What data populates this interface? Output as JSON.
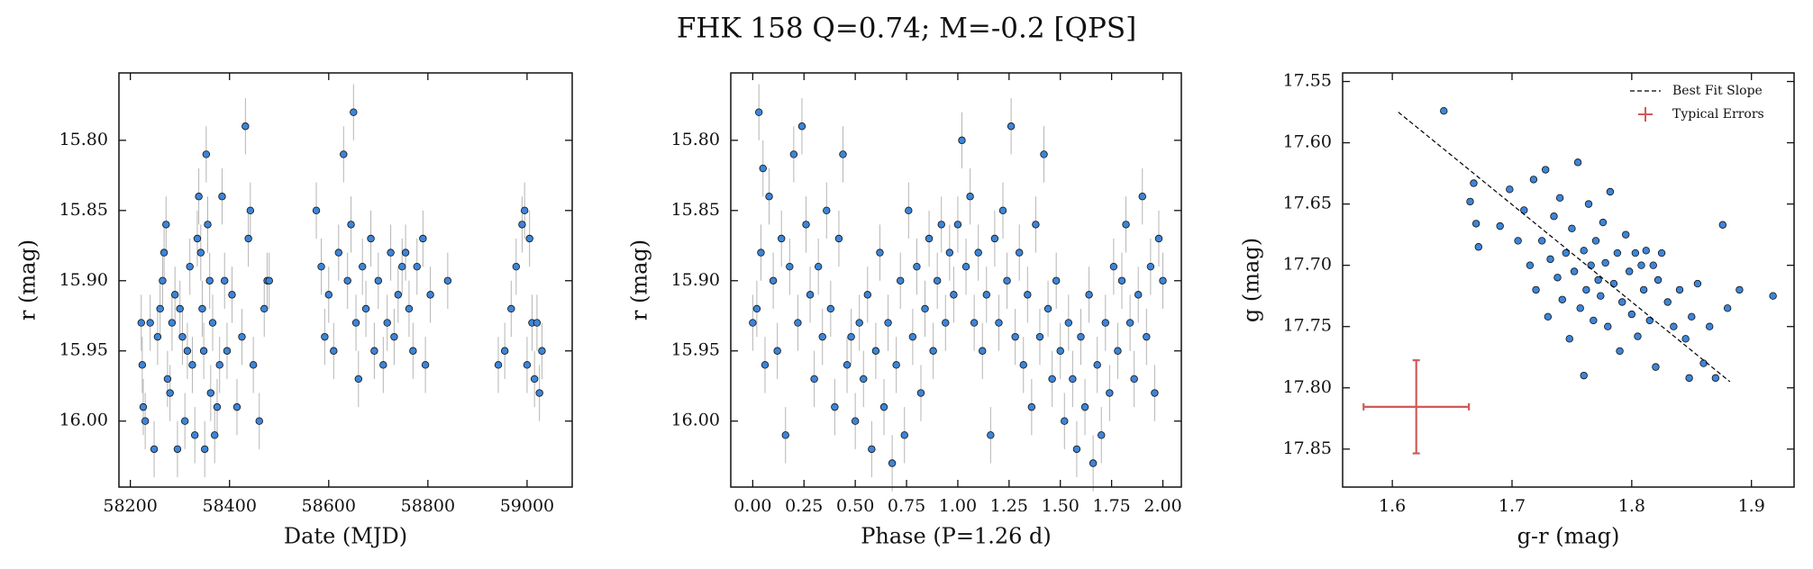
{
  "title": "FHK 158  Q=0.74; M=-0.2 [QPS]",
  "chart_data": [
    {
      "type": "scatter",
      "xlabel": "Date (MJD)",
      "ylabel": "r (mag)",
      "color": "#3d85d8",
      "error_color": "#b5b5b5",
      "yerr": 0.02,
      "xlim": [
        58177,
        59091
      ],
      "ylim": [
        16.047,
        15.752
      ],
      "xticks": [
        58200,
        58400,
        58600,
        58800,
        59000
      ],
      "yticks": [
        {
          "value": 15.8,
          "label": "15.80"
        },
        15.85,
        {
          "value": 15.9,
          "label": "15.90"
        },
        15.95,
        {
          "value": 16.0,
          "label": "16.00"
        }
      ],
      "x": [
        58222,
        58224,
        58226,
        58230,
        58240,
        58248,
        58255,
        58260,
        58265,
        58268,
        58272,
        58275,
        58280,
        58284,
        58290,
        58295,
        58300,
        58305,
        58310,
        58315,
        58320,
        58325,
        58330,
        58335,
        58338,
        58342,
        58345,
        58348,
        58350,
        58353,
        58356,
        58360,
        58362,
        58366,
        58370,
        58375,
        58380,
        58385,
        58390,
        58395,
        58405,
        58415,
        58425,
        58432,
        58438,
        58442,
        58448,
        58460,
        58470,
        58476,
        58480,
        58575,
        58585,
        58592,
        58600,
        58610,
        58620,
        58630,
        58638,
        58645,
        58650,
        58655,
        58660,
        58668,
        58675,
        58685,
        58692,
        58700,
        58710,
        58718,
        58725,
        58732,
        58740,
        58748,
        58755,
        58762,
        58770,
        58778,
        58790,
        58795,
        58805,
        58840,
        58942,
        58955,
        58968,
        58978,
        58990,
        58995,
        59000,
        59005,
        59010,
        59015,
        59020,
        59025,
        59030
      ],
      "y": [
        15.93,
        15.96,
        15.99,
        16.0,
        15.93,
        16.02,
        15.94,
        15.92,
        15.9,
        15.88,
        15.86,
        15.97,
        15.98,
        15.93,
        15.91,
        16.02,
        15.92,
        15.94,
        16.0,
        15.95,
        15.89,
        15.96,
        16.01,
        15.87,
        15.84,
        15.88,
        15.92,
        15.95,
        16.02,
        15.81,
        15.86,
        15.9,
        15.98,
        15.93,
        16.01,
        15.99,
        15.96,
        15.84,
        15.9,
        15.95,
        15.91,
        15.99,
        15.94,
        15.79,
        15.87,
        15.85,
        15.96,
        16.0,
        15.92,
        15.9,
        15.9,
        15.85,
        15.89,
        15.94,
        15.91,
        15.95,
        15.88,
        15.81,
        15.9,
        15.86,
        15.78,
        15.93,
        15.97,
        15.89,
        15.92,
        15.87,
        15.95,
        15.9,
        15.96,
        15.93,
        15.88,
        15.94,
        15.91,
        15.89,
        15.88,
        15.92,
        15.95,
        15.89,
        15.87,
        15.96,
        15.91,
        15.9,
        15.96,
        15.95,
        15.92,
        15.89,
        15.86,
        15.85,
        15.96,
        15.87,
        15.93,
        15.97,
        15.93,
        15.98,
        15.95
      ]
    },
    {
      "type": "scatter",
      "xlabel": "Phase (P=1.26 d)",
      "ylabel": "r (mag)",
      "color": "#3d85d8",
      "error_color": "#b5b5b5",
      "yerr": 0.02,
      "xlim": [
        -0.107,
        2.09
      ],
      "ylim": [
        16.047,
        15.752
      ],
      "xticks": [
        {
          "value": 0,
          "label": "0.00"
        },
        0.25,
        {
          "value": 0.5,
          "label": "0.50"
        },
        0.75,
        {
          "value": 1,
          "label": "1.00"
        },
        1.25,
        {
          "value": 1.5,
          "label": "1.50"
        },
        1.75,
        {
          "value": 2,
          "label": "2.00"
        }
      ],
      "yticks": [
        {
          "value": 15.8,
          "label": "15.80"
        },
        15.85,
        {
          "value": 15.9,
          "label": "15.90"
        },
        15.95,
        {
          "value": 16.0,
          "label": "16.00"
        }
      ],
      "x": [
        0.0,
        0.02,
        0.03,
        0.04,
        0.05,
        0.06,
        0.08,
        0.1,
        0.12,
        0.14,
        0.16,
        0.18,
        0.2,
        0.22,
        0.24,
        0.26,
        0.28,
        0.3,
        0.32,
        0.34,
        0.36,
        0.38,
        0.4,
        0.42,
        0.44,
        0.46,
        0.48,
        0.5,
        0.52,
        0.54,
        0.56,
        0.58,
        0.6,
        0.62,
        0.64,
        0.66,
        0.68,
        0.7,
        0.72,
        0.74,
        0.76,
        0.78,
        0.8,
        0.82,
        0.84,
        0.86,
        0.88,
        0.9,
        0.92,
        0.94,
        0.96,
        0.98,
        1.0,
        1.02,
        1.04,
        1.06,
        1.08,
        1.1,
        1.12,
        1.14,
        1.16,
        1.18,
        1.2,
        1.22,
        1.24,
        1.26,
        1.28,
        1.3,
        1.32,
        1.34,
        1.36,
        1.38,
        1.4,
        1.42,
        1.44,
        1.46,
        1.48,
        1.5,
        1.52,
        1.54,
        1.56,
        1.58,
        1.6,
        1.62,
        1.64,
        1.66,
        1.68,
        1.7,
        1.72,
        1.74,
        1.76,
        1.78,
        1.8,
        1.82,
        1.84,
        1.86,
        1.88,
        1.9,
        1.92,
        1.94,
        1.96,
        1.98,
        2.0
      ],
      "y": [
        15.93,
        15.92,
        15.78,
        15.88,
        15.82,
        15.96,
        15.84,
        15.9,
        15.95,
        15.87,
        16.01,
        15.89,
        15.81,
        15.93,
        15.79,
        15.86,
        15.91,
        15.97,
        15.89,
        15.94,
        15.85,
        15.92,
        15.99,
        15.87,
        15.81,
        15.96,
        15.94,
        16.0,
        15.93,
        15.97,
        15.91,
        16.02,
        15.95,
        15.88,
        15.99,
        15.93,
        16.03,
        15.96,
        15.9,
        16.01,
        15.85,
        15.94,
        15.89,
        15.98,
        15.92,
        15.87,
        15.95,
        15.9,
        15.86,
        15.93,
        15.88,
        15.91,
        15.86,
        15.8,
        15.89,
        15.84,
        15.93,
        15.88,
        15.95,
        15.91,
        16.01,
        15.87,
        15.93,
        15.85,
        15.9,
        15.79,
        15.94,
        15.88,
        15.96,
        15.91,
        15.99,
        15.86,
        15.94,
        15.81,
        15.92,
        15.97,
        15.9,
        15.95,
        16.0,
        15.93,
        15.97,
        16.02,
        15.94,
        15.99,
        15.91,
        16.03,
        15.96,
        16.01,
        15.93,
        15.98,
        15.89,
        15.95,
        15.9,
        15.86,
        15.93,
        15.97,
        15.91,
        15.84,
        15.94,
        15.89,
        15.98,
        15.87,
        15.9
      ]
    },
    {
      "type": "scatter",
      "xlabel": "g-r (mag)",
      "ylabel": "g (mag)",
      "color": "#3d85d8",
      "xlim": [
        1.5585,
        1.9356
      ],
      "ylim": [
        17.881,
        17.543
      ],
      "xticks": [
        1.6,
        1.7,
        1.8,
        1.9
      ],
      "yticks": [
        17.55,
        {
          "value": 17.6,
          "label": "17.60"
        },
        17.65,
        {
          "value": 17.7,
          "label": "17.70"
        },
        17.75,
        {
          "value": 17.8,
          "label": "17.80"
        },
        17.85
      ],
      "x": [
        1.643,
        1.665,
        1.668,
        1.67,
        1.672,
        1.69,
        1.698,
        1.705,
        1.71,
        1.715,
        1.718,
        1.72,
        1.725,
        1.728,
        1.73,
        1.732,
        1.735,
        1.738,
        1.74,
        1.742,
        1.745,
        1.748,
        1.75,
        1.752,
        1.755,
        1.757,
        1.76,
        1.762,
        1.764,
        1.766,
        1.768,
        1.77,
        1.772,
        1.774,
        1.776,
        1.778,
        1.78,
        1.782,
        1.785,
        1.788,
        1.79,
        1.792,
        1.795,
        1.798,
        1.8,
        1.803,
        1.805,
        1.808,
        1.81,
        1.812,
        1.815,
        1.818,
        1.82,
        1.822,
        1.825,
        1.83,
        1.835,
        1.84,
        1.845,
        1.85,
        1.855,
        1.86,
        1.865,
        1.87,
        1.876,
        1.88,
        1.89,
        1.918,
        1.848,
        1.76
      ],
      "y": [
        17.574,
        17.648,
        17.633,
        17.666,
        17.685,
        17.668,
        17.638,
        17.68,
        17.655,
        17.7,
        17.63,
        17.72,
        17.68,
        17.622,
        17.742,
        17.695,
        17.66,
        17.71,
        17.645,
        17.728,
        17.69,
        17.76,
        17.67,
        17.705,
        17.616,
        17.735,
        17.688,
        17.72,
        17.65,
        17.7,
        17.745,
        17.68,
        17.712,
        17.725,
        17.665,
        17.698,
        17.75,
        17.64,
        17.715,
        17.69,
        17.77,
        17.73,
        17.675,
        17.705,
        17.74,
        17.69,
        17.758,
        17.7,
        17.72,
        17.688,
        17.745,
        17.7,
        17.783,
        17.712,
        17.69,
        17.73,
        17.75,
        17.72,
        17.76,
        17.742,
        17.715,
        17.78,
        17.75,
        17.792,
        17.667,
        17.735,
        17.72,
        17.725,
        17.792,
        17.79
      ],
      "fit": {
        "name": "Best Fit Slope",
        "color": "#000000",
        "x": [
          1.605,
          1.882
        ],
        "y": [
          17.575,
          17.795
        ]
      },
      "typical_errors": {
        "name": "Typical Errors",
        "color": "#d05a5a",
        "x": 1.62,
        "y": 17.8155,
        "xerr": 0.044,
        "yerr": 0.038
      },
      "legend": "upper right"
    }
  ]
}
